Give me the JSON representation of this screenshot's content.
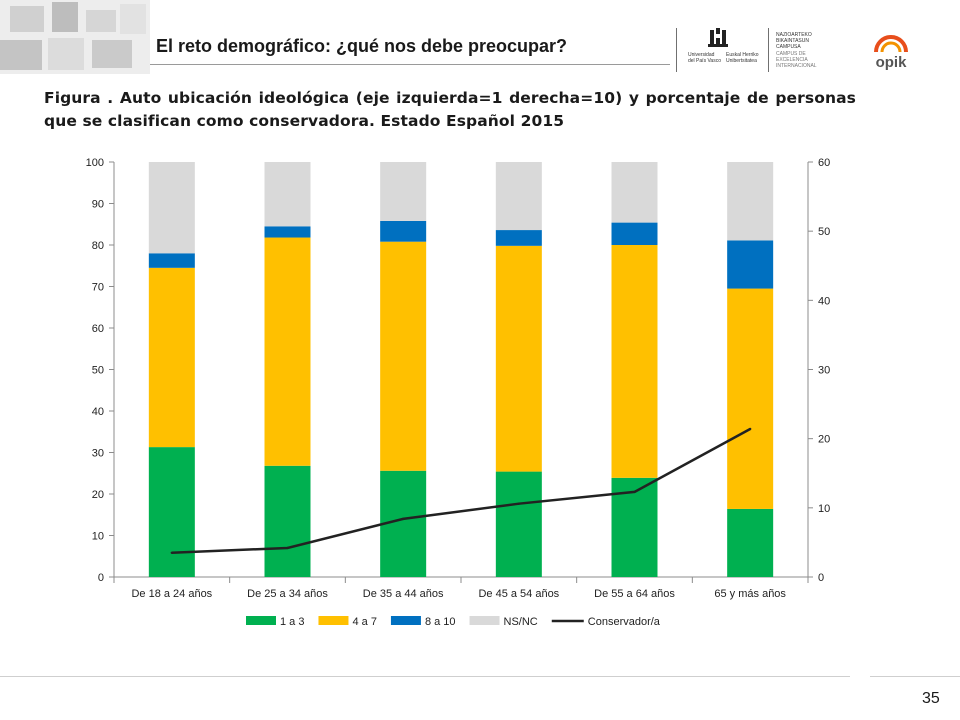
{
  "header": {
    "title": "El reto demográfico: ¿qué nos debe preocupar?",
    "logo_upv_lines": [
      "Universidad",
      "del País Vasco",
      "Euskal Herriko",
      "Unibertsitatea"
    ],
    "logo_campus_lines": [
      "NAZIOARTEKO",
      "BIKAINTASUN",
      "CAMPUSA",
      "CAMPUS DE",
      "EXCELENCIA",
      "INTERNACIONAL"
    ],
    "logo_opik": "opik"
  },
  "caption": {
    "line1": "Figura . Auto ubicación ideológica (eje izquierda=1 derecha=10) y porcentaje de personas",
    "line2": "que se clasifican como conservadora. Estado Español 2015"
  },
  "page_number": "35",
  "colors": {
    "green": "#00B050",
    "yellow": "#FFC000",
    "blue": "#0070C0",
    "grey": "#D9D9D9",
    "line": "#222222"
  },
  "chart_data": {
    "type": "bar",
    "stacked": true,
    "categories": [
      "De 18 a 24 años",
      "De 25 a 34 años",
      "De 35 a 44 años",
      "De 45 a 54 años",
      "De 55 a 64 años",
      "65 y más años"
    ],
    "y_ticks": [
      "0",
      "10",
      "20",
      "30",
      "40",
      "50",
      "60",
      "70",
      "80",
      "90",
      "100"
    ],
    "y2_ticks": [
      "0",
      "10",
      "20",
      "30",
      "40",
      "50",
      "60"
    ],
    "ylim": [
      0,
      100
    ],
    "y2lim": [
      0,
      60
    ],
    "grid": false,
    "legend_position": "bottom",
    "series": [
      {
        "name": "1 a 3",
        "axis": "left",
        "kind": "bar",
        "color": "#00B050",
        "values": [
          31.3,
          26.8,
          25.6,
          25.4,
          23.9,
          16.4
        ]
      },
      {
        "name": "4 a 7",
        "axis": "left",
        "kind": "bar",
        "color": "#FFC000",
        "values": [
          43.2,
          55.0,
          55.2,
          54.4,
          56.1,
          53.1
        ]
      },
      {
        "name": "8 a 10",
        "axis": "left",
        "kind": "bar",
        "color": "#0070C0",
        "values": [
          3.5,
          2.7,
          5.0,
          3.8,
          5.4,
          11.6
        ]
      },
      {
        "name": "NS/NC",
        "axis": "left",
        "kind": "bar",
        "color": "#D9D9D9",
        "values": [
          22.0,
          15.5,
          14.2,
          16.4,
          14.6,
          18.9
        ]
      },
      {
        "name": "Conservador/a",
        "axis": "right",
        "kind": "line",
        "color": "#222222",
        "values": [
          3.5,
          4.2,
          8.4,
          10.6,
          12.3,
          21.4
        ]
      }
    ]
  }
}
